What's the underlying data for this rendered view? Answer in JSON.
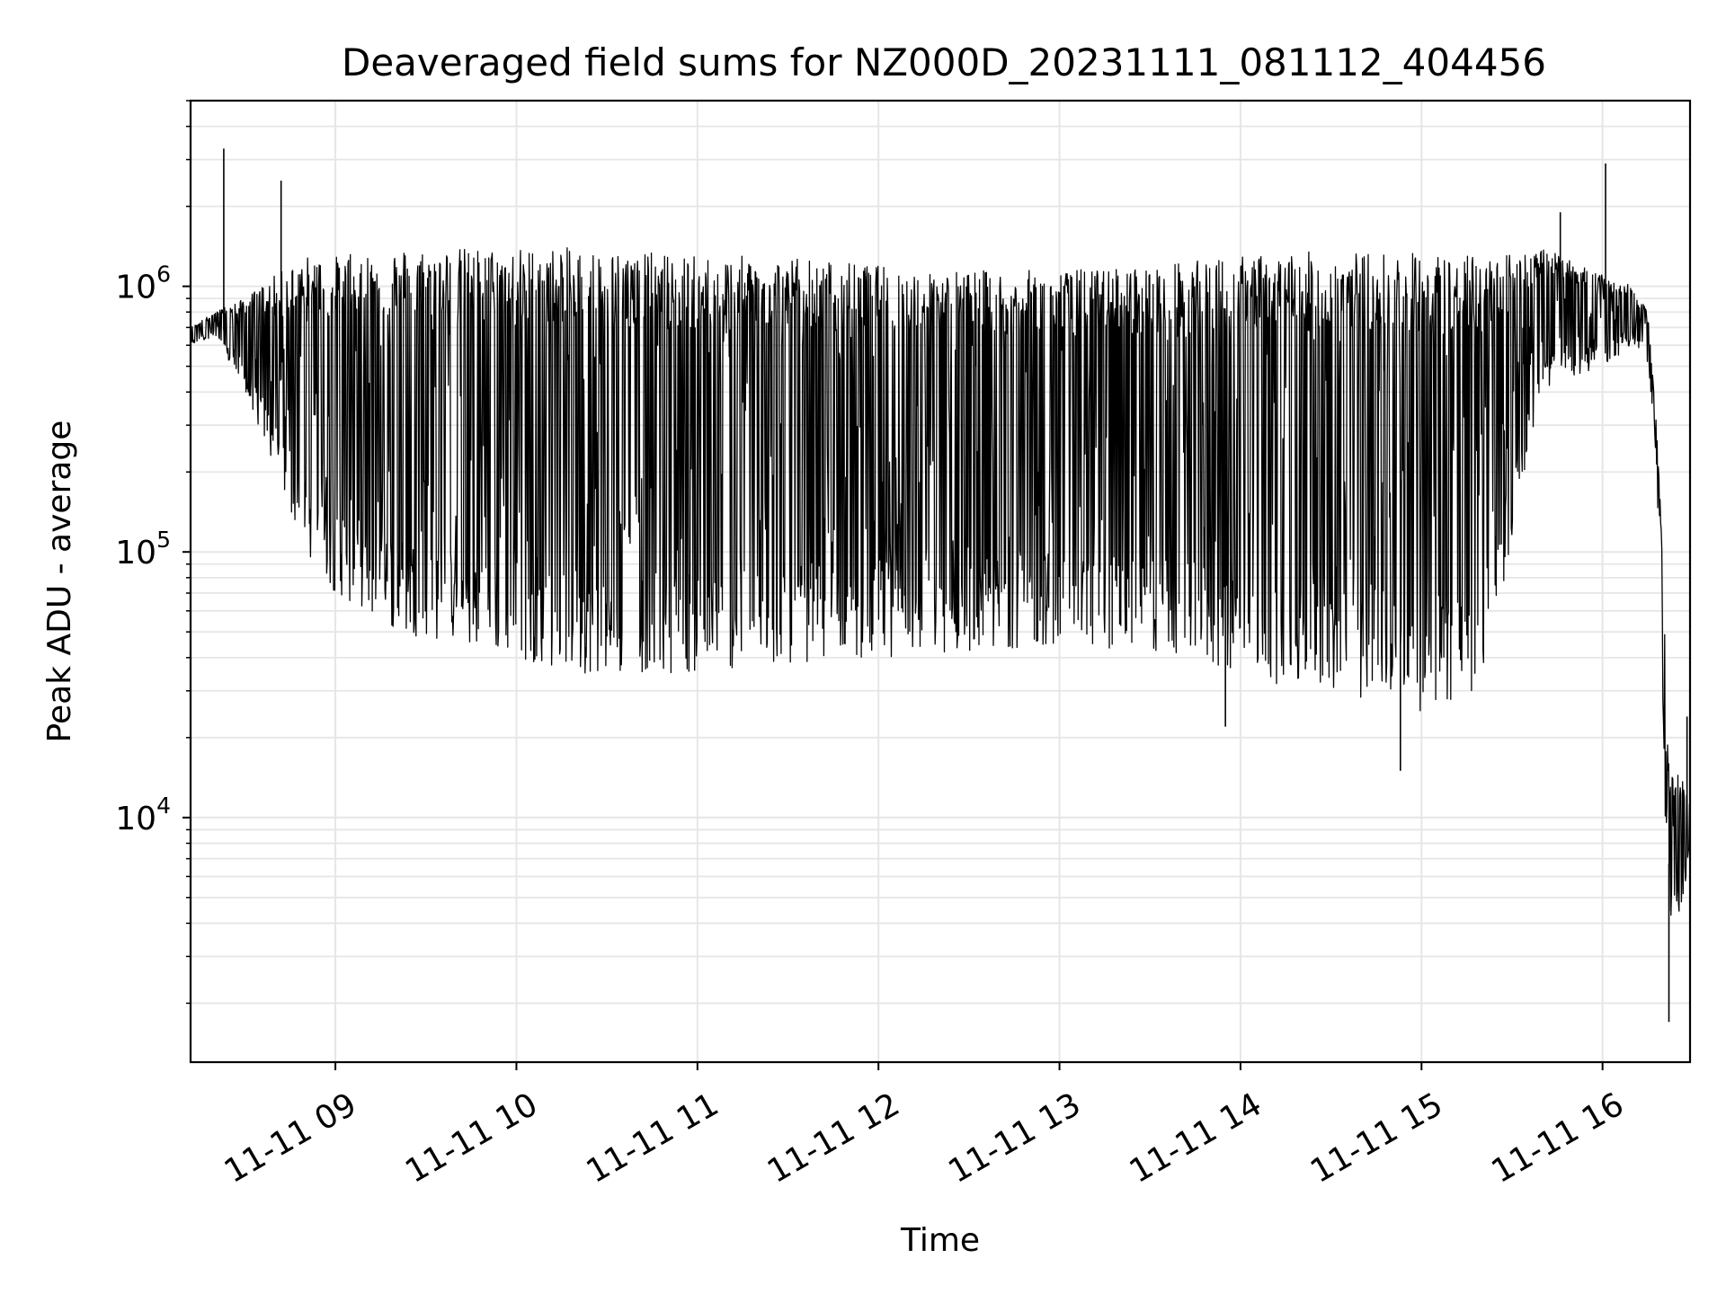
{
  "chart_data": {
    "type": "line",
    "title": "Deaveraged field sums for NZ000D_20231111_081112_404456",
    "xlabel": "Time",
    "ylabel": "Peak ADU - average",
    "x_ticks": [
      {
        "value": "2023-11-11T09:00",
        "label": "11-11 09"
      },
      {
        "value": "2023-11-11T10:00",
        "label": "11-11 10"
      },
      {
        "value": "2023-11-11T11:00",
        "label": "11-11 11"
      },
      {
        "value": "2023-11-11T12:00",
        "label": "11-11 12"
      },
      {
        "value": "2023-11-11T13:00",
        "label": "11-11 13"
      },
      {
        "value": "2023-11-11T14:00",
        "label": "11-11 14"
      },
      {
        "value": "2023-11-11T15:00",
        "label": "11-11 15"
      },
      {
        "value": "2023-11-11T16:00",
        "label": "11-11 16"
      }
    ],
    "y_ticks": [
      {
        "value": 10000,
        "base": "10",
        "exp": "4"
      },
      {
        "value": 100000,
        "base": "10",
        "exp": "5"
      },
      {
        "value": 1000000,
        "base": "10",
        "exp": "6"
      }
    ],
    "xlim": [
      "2023-11-11T08:12",
      "2023-11-11T16:29"
    ],
    "ylim": [
      1200,
      5000000
    ],
    "y_scale": "log",
    "grid": true,
    "line_color": "#000000",
    "grid_color": "#e6e6e6",
    "series": [
      {
        "x": [
          "2023-11-11T08:12",
          "2023-11-11T08:20",
          "2023-11-11T08:30",
          "2023-11-11T08:40",
          "2023-11-11T08:50",
          "2023-11-11T09:00",
          "2023-11-11T09:20",
          "2023-11-11T09:40",
          "2023-11-11T10:00",
          "2023-11-11T10:20",
          "2023-11-11T10:40",
          "2023-11-11T11:00",
          "2023-11-11T11:30",
          "2023-11-11T12:00",
          "2023-11-11T12:30",
          "2023-11-11T13:00",
          "2023-11-11T13:30",
          "2023-11-11T14:00",
          "2023-11-11T14:20",
          "2023-11-11T14:40",
          "2023-11-11T15:00",
          "2023-11-11T15:20",
          "2023-11-11T15:40",
          "2023-11-11T16:00",
          "2023-11-11T16:10",
          "2023-11-11T16:15",
          "2023-11-11T16:18",
          "2023-11-11T16:20",
          "2023-11-11T16:22",
          "2023-11-11T16:25",
          "2023-11-11T16:29"
        ],
        "upper": [
          700000,
          800000,
          900000,
          1100000,
          1300000,
          1300000,
          1400000,
          1400000,
          1400000,
          1400000,
          1350000,
          1300000,
          1300000,
          1200000,
          1150000,
          1150000,
          1200000,
          1300000,
          1350000,
          1350000,
          1350000,
          1300000,
          1400000,
          1100000,
          1000000,
          800000,
          300000,
          100000,
          15000,
          15000,
          12000
        ],
        "lower": [
          600000,
          650000,
          400000,
          200000,
          100000,
          70000,
          50000,
          45000,
          40000,
          35000,
          35000,
          35000,
          38000,
          40000,
          42000,
          45000,
          42000,
          35000,
          30000,
          28000,
          25000,
          30000,
          400000,
          500000,
          600000,
          500000,
          200000,
          20000,
          3000,
          4000,
          7000
        ]
      }
    ],
    "spikes": [
      {
        "x": "2023-11-11T08:23",
        "y": 3300000
      },
      {
        "x": "2023-11-11T08:42",
        "y": 2500000
      },
      {
        "x": "2023-11-11T16:01",
        "y": 2900000
      },
      {
        "x": "2023-11-11T15:46",
        "y": 1900000
      },
      {
        "x": "2023-11-11T14:53",
        "y": 15000
      },
      {
        "x": "2023-11-11T13:55",
        "y": 22000
      },
      {
        "x": "2023-11-11T16:22",
        "y": 1700
      },
      {
        "x": "2023-11-11T16:28",
        "y": 24000
      }
    ]
  }
}
